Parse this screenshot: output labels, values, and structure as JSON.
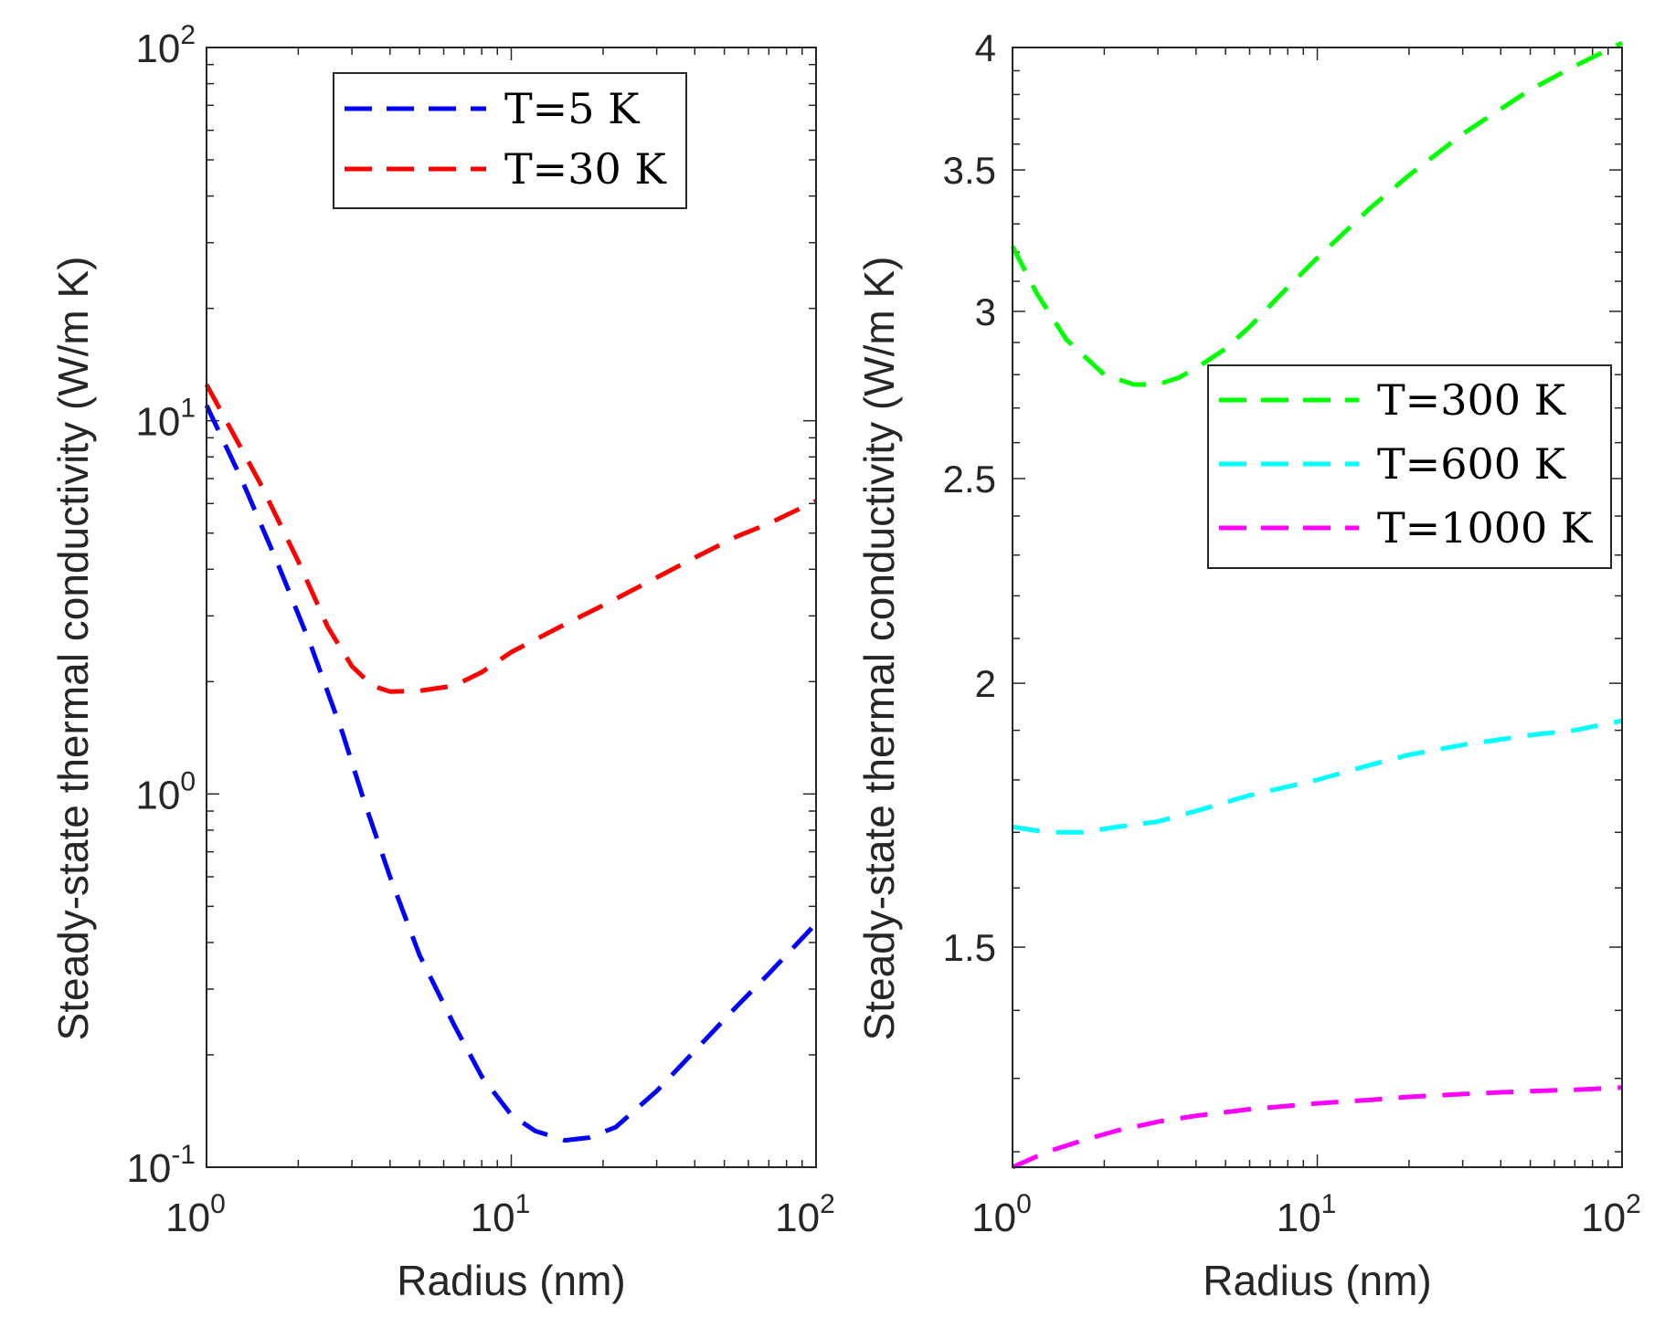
{
  "chart_data": [
    {
      "type": "line",
      "xlabel": "Radius (nm)",
      "ylabel": "Steady-state thermal conductivity (W/m K)",
      "xscale": "log",
      "yscale": "log",
      "xlim": [
        1,
        100
      ],
      "ylim": [
        0.1,
        100
      ],
      "xticks": [
        {
          "value": 1,
          "base": "10",
          "exp": "0"
        },
        {
          "value": 10,
          "base": "10",
          "exp": "1"
        },
        {
          "value": 100,
          "base": "10",
          "exp": "2"
        }
      ],
      "yticks": [
        {
          "value": 0.1,
          "base": "10",
          "exp": "-1"
        },
        {
          "value": 1,
          "base": "10",
          "exp": "0"
        },
        {
          "value": 10,
          "base": "10",
          "exp": "1"
        },
        {
          "value": 100,
          "base": "10",
          "exp": "2"
        }
      ],
      "legend_position": "top-right",
      "line_style": "dashed",
      "series": [
        {
          "name": "T=5 K",
          "color": "#0000FF",
          "x": [
            1,
            1.3,
            1.7,
            2.2,
            2.8,
            3.3,
            4,
            5,
            6.5,
            8,
            10,
            12,
            15,
            18,
            22,
            30,
            40,
            55,
            70,
            100
          ],
          "y": [
            11,
            7,
            4.2,
            2.5,
            1.45,
            0.95,
            0.6,
            0.37,
            0.24,
            0.175,
            0.138,
            0.125,
            0.118,
            0.12,
            0.128,
            0.16,
            0.205,
            0.27,
            0.33,
            0.45
          ]
        },
        {
          "name": "T=30 K",
          "color": "#FF0000",
          "x": [
            1,
            1.5,
            2,
            2.5,
            3,
            3.5,
            4,
            5,
            6.5,
            8,
            10,
            15,
            20,
            30,
            40,
            55,
            70,
            100
          ],
          "y": [
            12.5,
            6.8,
            4.2,
            2.8,
            2.2,
            1.95,
            1.88,
            1.89,
            1.95,
            2.12,
            2.4,
            2.85,
            3.2,
            3.8,
            4.3,
            4.9,
            5.3,
            6.1
          ]
        }
      ]
    },
    {
      "type": "line",
      "xlabel": "Radius (nm)",
      "ylabel": "Steady-state thermal conductivity (W/m K)",
      "xscale": "log",
      "yscale": "log",
      "xlim": [
        1,
        100
      ],
      "ylim": [
        1.18,
        4.0
      ],
      "xticks": [
        {
          "value": 1,
          "base": "10",
          "exp": "0"
        },
        {
          "value": 10,
          "base": "10",
          "exp": "1"
        },
        {
          "value": 100,
          "base": "10",
          "exp": "2"
        }
      ],
      "yticks": [
        {
          "value": 1.5,
          "label": "1.5"
        },
        {
          "value": 2,
          "label": "2"
        },
        {
          "value": 2.5,
          "label": "2.5"
        },
        {
          "value": 3,
          "label": "3"
        },
        {
          "value": 3.5,
          "label": "3.5"
        },
        {
          "value": 4,
          "label": "4"
        }
      ],
      "legend_position": "top-right",
      "line_style": "dashed",
      "series": [
        {
          "name": "T=300 K",
          "color": "#00FF00",
          "x": [
            1,
            1.2,
            1.5,
            2,
            2.5,
            3,
            3.5,
            4,
            5,
            6,
            8,
            10,
            15,
            20,
            30,
            50,
            70,
            100
          ],
          "y": [
            3.22,
            3.06,
            2.91,
            2.8,
            2.77,
            2.77,
            2.79,
            2.82,
            2.88,
            2.95,
            3.08,
            3.18,
            3.36,
            3.48,
            3.64,
            3.82,
            3.92,
            4.02
          ]
        },
        {
          "name": "T=600 K",
          "color": "#00FFFF",
          "x": [
            1,
            1.3,
            1.7,
            2.2,
            3,
            4,
            6,
            10,
            15,
            20,
            30,
            50,
            70,
            100
          ],
          "y": [
            1.71,
            1.7,
            1.7,
            1.71,
            1.72,
            1.74,
            1.77,
            1.8,
            1.83,
            1.85,
            1.87,
            1.89,
            1.9,
            1.92
          ]
        },
        {
          "name": "T=1000 K",
          "color": "#FF00FF",
          "x": [
            1,
            1.3,
            1.7,
            2.2,
            3,
            4,
            6,
            10,
            15,
            20,
            30,
            50,
            70,
            100
          ],
          "y": [
            1.18,
            1.2,
            1.215,
            1.228,
            1.24,
            1.248,
            1.257,
            1.265,
            1.27,
            1.274,
            1.278,
            1.282,
            1.284,
            1.287
          ]
        }
      ]
    }
  ]
}
